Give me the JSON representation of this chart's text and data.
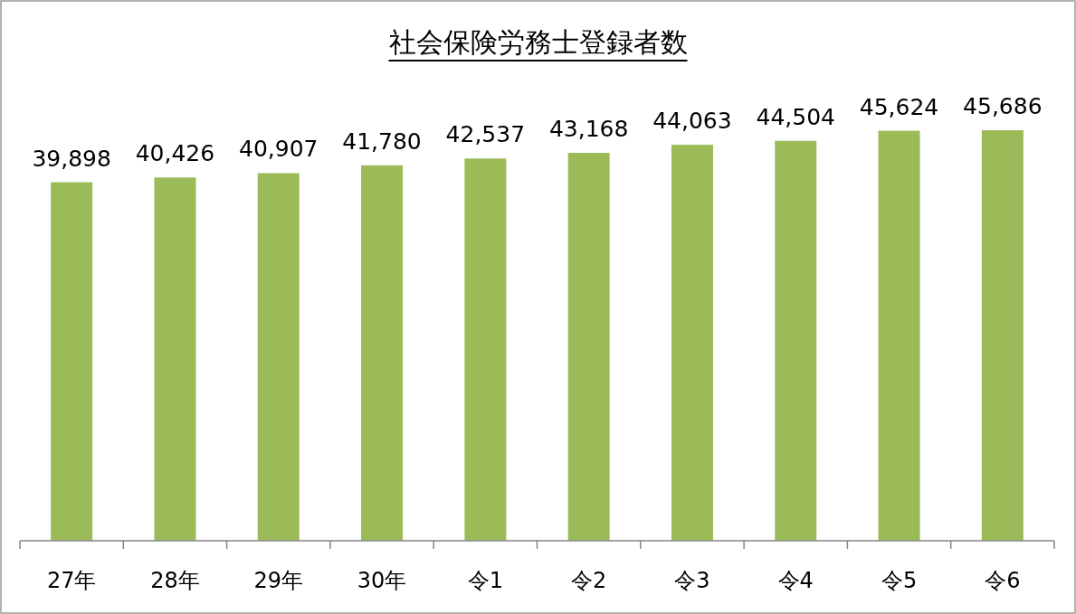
{
  "chart_data": {
    "type": "bar",
    "title": "社会保険労務士登録者数",
    "categories": [
      "27年",
      "28年",
      "29年",
      "30年",
      "令1",
      "令2",
      "令3",
      "令4",
      "令5",
      "令6"
    ],
    "values": [
      39898,
      40426,
      40907,
      41780,
      42537,
      43168,
      44063,
      44504,
      45624,
      45686
    ],
    "value_labels": [
      "39,898",
      "40,426",
      "40,907",
      "41,780",
      "42,537",
      "43,168",
      "44,063",
      "44,504",
      "45,624",
      "45,686"
    ],
    "color": "#9bbb59"
  }
}
